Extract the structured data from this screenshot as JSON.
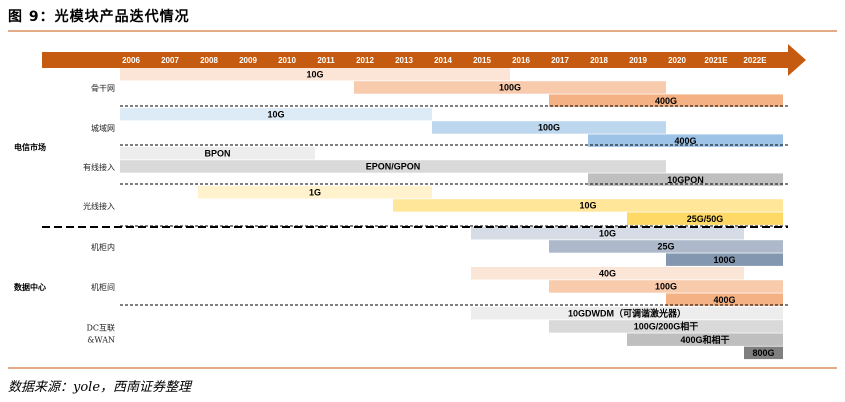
{
  "title": "图 9：光模块产品迭代情况",
  "source": "数据来源：yole，西南证券整理",
  "chart_data": {
    "type": "gantt",
    "years": [
      "2006",
      "2007",
      "2008",
      "2009",
      "2010",
      "2011",
      "2012",
      "2013",
      "2014",
      "2015",
      "2016",
      "2017",
      "2018",
      "2019",
      "2020",
      "2021E",
      "2022E"
    ],
    "groups": [
      {
        "label": "电信市场",
        "rows": [
          {
            "label": "骨干网",
            "bars": [
              {
                "text": "10G",
                "start": 2006,
                "end": 2016,
                "color": "#fce4d6"
              },
              {
                "text": "100G",
                "start": 2012,
                "end": 2020,
                "color": "#f8cbad"
              },
              {
                "text": "400G",
                "start": 2017,
                "end": 2023,
                "color": "#f4b183"
              }
            ]
          },
          {
            "label": "城域网",
            "bars": [
              {
                "text": "10G",
                "start": 2006,
                "end": 2014,
                "color": "#ddebf7"
              },
              {
                "text": "100G",
                "start": 2014,
                "end": 2020,
                "color": "#bdd7ee"
              },
              {
                "text": "400G",
                "start": 2018,
                "end": 2023,
                "color": "#9dc3e6"
              }
            ]
          },
          {
            "label": "有线接入",
            "bars": [
              {
                "text": "BPON",
                "start": 2006,
                "end": 2011,
                "color": "#ededed"
              },
              {
                "text": "EPON/GPON",
                "start": 2006,
                "end": 2020,
                "color": "#d9d9d9"
              },
              {
                "text": "10GPON",
                "start": 2018,
                "end": 2023,
                "color": "#bfbfbf"
              }
            ]
          },
          {
            "label": "光线接入",
            "bars": [
              {
                "text": "1G",
                "start": 2008,
                "end": 2014,
                "color": "#fff2cc"
              },
              {
                "text": "10G",
                "start": 2013,
                "end": 2023,
                "color": "#ffe699"
              },
              {
                "text": "25G/50G",
                "start": 2019,
                "end": 2023,
                "color": "#ffd966"
              }
            ]
          }
        ]
      },
      {
        "label": "数据中心",
        "rows": [
          {
            "label": "机柜内",
            "bars": [
              {
                "text": "10G",
                "start": 2015,
                "end": 2022,
                "color": "#d6dce5"
              },
              {
                "text": "25G",
                "start": 2017,
                "end": 2023,
                "color": "#adb9ca"
              },
              {
                "text": "100G",
                "start": 2020,
                "end": 2023,
                "color": "#8497b0"
              }
            ]
          },
          {
            "label": "机柜间",
            "bars": [
              {
                "text": "40G",
                "start": 2015,
                "end": 2022,
                "color": "#fbe5d6"
              },
              {
                "text": "100G",
                "start": 2017,
                "end": 2023,
                "color": "#f8cbad"
              },
              {
                "text": "400G",
                "start": 2020,
                "end": 2023,
                "color": "#f4b183"
              }
            ]
          },
          {
            "label": "DC互联\n&WAN",
            "bars": [
              {
                "text": "10GDWDM（可调谐激光器）",
                "start": 2015,
                "end": 2023,
                "color": "#ededed"
              },
              {
                "text": "100G/200G相干",
                "start": 2017,
                "end": 2023,
                "color": "#d9d9d9"
              },
              {
                "text": "400G和相干",
                "start": 2019,
                "end": 2023,
                "color": "#bfbfbf"
              },
              {
                "text": "800G",
                "start": 2022,
                "end": 2023,
                "color": "#7f7f7f"
              }
            ]
          }
        ]
      }
    ],
    "arrow_color": "#c55a11"
  }
}
